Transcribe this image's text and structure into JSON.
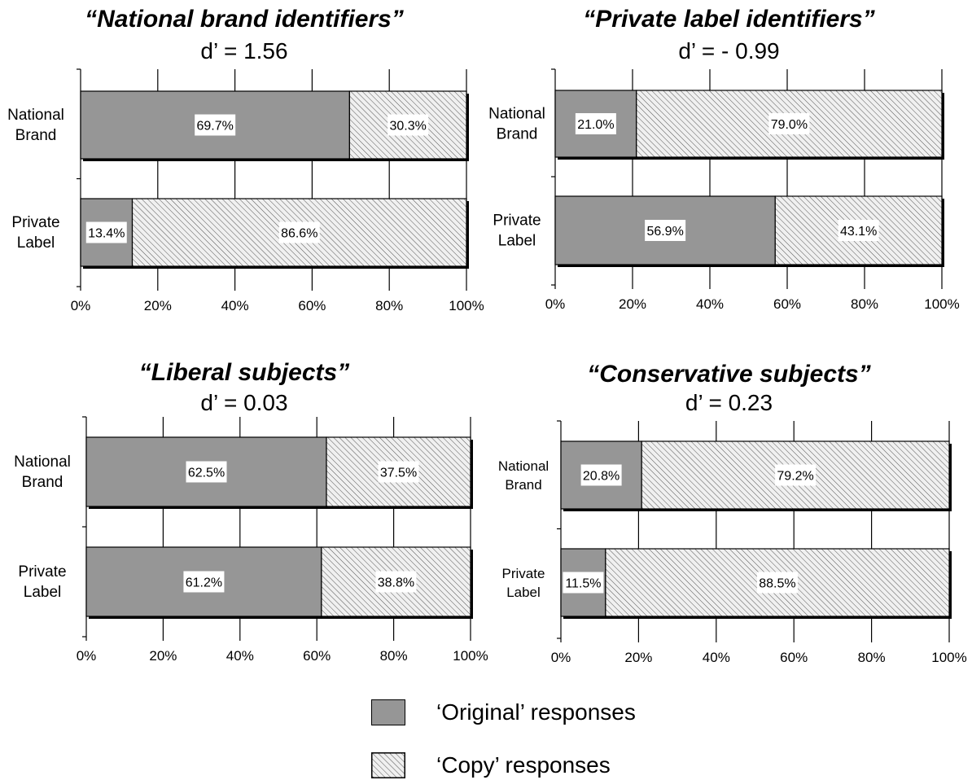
{
  "legend": {
    "original_label": "‘Original’ responses",
    "copy_label": "‘Copy’ responses",
    "original_color": "#969696",
    "copy_color": "#f0f0f0"
  },
  "chart_data": [
    {
      "type": "bar",
      "orientation": "horizontal",
      "stacked": true,
      "title": "“National brand identifiers”",
      "subtitle": "d’ = 1.56",
      "categories": [
        "National Brand",
        "Private Label"
      ],
      "series": [
        {
          "name": "‘Original’ responses",
          "values": [
            69.7,
            13.4
          ]
        },
        {
          "name": "‘Copy’ responses",
          "values": [
            30.3,
            86.6
          ]
        }
      ],
      "data_labels": [
        [
          "69.7%",
          "13.4%"
        ],
        [
          "30.3%",
          "86.6%"
        ]
      ],
      "xticks": [
        "0%",
        "20%",
        "40%",
        "60%",
        "80%",
        "100%"
      ],
      "xlim": [
        0,
        100
      ],
      "grid": true,
      "legend": "bottom"
    },
    {
      "type": "bar",
      "orientation": "horizontal",
      "stacked": true,
      "title": "“Private label identifiers”",
      "subtitle": "d’ = - 0.99",
      "categories": [
        "National Brand",
        "Private Label"
      ],
      "series": [
        {
          "name": "‘Original’ responses",
          "values": [
            21.0,
            56.9
          ]
        },
        {
          "name": "‘Copy’ responses",
          "values": [
            79.0,
            43.1
          ]
        }
      ],
      "data_labels": [
        [
          "21.0%",
          "56.9%"
        ],
        [
          "79.0%",
          "43.1%"
        ]
      ],
      "xticks": [
        "0%",
        "20%",
        "40%",
        "60%",
        "80%",
        "100%"
      ],
      "xlim": [
        0,
        100
      ],
      "grid": true,
      "legend": "bottom"
    },
    {
      "type": "bar",
      "orientation": "horizontal",
      "stacked": true,
      "title": "“Liberal subjects”",
      "subtitle": "d’ = 0.03",
      "categories": [
        "National Brand",
        "Private Label"
      ],
      "series": [
        {
          "name": "‘Original’ responses",
          "values": [
            62.5,
            61.2
          ]
        },
        {
          "name": "‘Copy’ responses",
          "values": [
            37.5,
            38.8
          ]
        }
      ],
      "data_labels": [
        [
          "62.5%",
          "61.2%"
        ],
        [
          "37.5%",
          "38.8%"
        ]
      ],
      "xticks": [
        "0%",
        "20%",
        "40%",
        "60%",
        "80%",
        "100%"
      ],
      "xlim": [
        0,
        100
      ],
      "grid": true,
      "legend": "bottom"
    },
    {
      "type": "bar",
      "orientation": "horizontal",
      "stacked": true,
      "title": "“Conservative subjects”",
      "subtitle": "d’ = 0.23",
      "categories": [
        "National Brand",
        "Private Label"
      ],
      "series": [
        {
          "name": "‘Original’ responses",
          "values": [
            20.8,
            11.5
          ]
        },
        {
          "name": "‘Copy’ responses",
          "values": [
            79.2,
            88.5
          ]
        }
      ],
      "data_labels": [
        [
          "20.8%",
          "11.5%"
        ],
        [
          "79.2%",
          "88.5%"
        ]
      ],
      "xticks": [
        "0%",
        "20%",
        "40%",
        "60%",
        "80%",
        "100%"
      ],
      "xlim": [
        0,
        100
      ],
      "grid": true,
      "legend": "bottom"
    }
  ]
}
